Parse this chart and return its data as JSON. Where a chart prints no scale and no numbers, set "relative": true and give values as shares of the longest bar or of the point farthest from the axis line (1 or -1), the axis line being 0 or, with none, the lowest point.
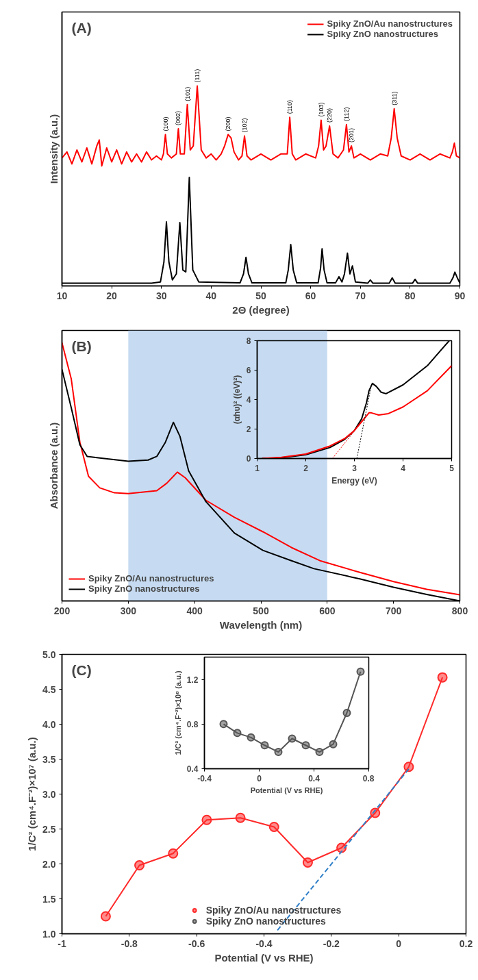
{
  "chart_data": [
    {
      "type": "line",
      "title": "(A)",
      "xlabel": "2Θ (degree)",
      "ylabel": "Intensity (a.u.)",
      "relative": true,
      "xlim": [
        10,
        90
      ],
      "xticks": [
        10,
        20,
        30,
        40,
        50,
        60,
        70,
        80,
        90
      ],
      "tick_labels": "x",
      "legend": "top right",
      "series": [
        {
          "name": "Spiky ZnO/Au nanostructures",
          "color": "#ff0000",
          "x": [
            10,
            11,
            12,
            13,
            14,
            15,
            16,
            17,
            17.5,
            18,
            19,
            20,
            21,
            22,
            23,
            24,
            25,
            26,
            27,
            28,
            29,
            30,
            30.4,
            30.8,
            31.2,
            32,
            33,
            33.4,
            33.8,
            34.6,
            35.2,
            35.8,
            36.4,
            37.2,
            38,
            39,
            40,
            41,
            42,
            42.7,
            43.4,
            44,
            44.6,
            45.5,
            46.2,
            46.7,
            47.2,
            48,
            50,
            52,
            54,
            55.3,
            55.8,
            56.3,
            57,
            59,
            61,
            61.6,
            62.1,
            62.6,
            63.1,
            63.8,
            64.5,
            65.5,
            66.6,
            67.2,
            67.7,
            68.2,
            68.7,
            70,
            72,
            74,
            75.5,
            76.2,
            76.8,
            77.4,
            78.2,
            80,
            82,
            84,
            86,
            88,
            88.5,
            88.9,
            89.3,
            90
          ],
          "values": [
            0.64,
            0.67,
            0.61,
            0.68,
            0.62,
            0.69,
            0.61,
            0.7,
            0.73,
            0.6,
            0.69,
            0.62,
            0.68,
            0.61,
            0.67,
            0.62,
            0.66,
            0.62,
            0.67,
            0.63,
            0.65,
            0.63,
            0.66,
            0.757,
            0.66,
            0.64,
            0.66,
            0.786,
            0.66,
            0.66,
            0.907,
            0.68,
            0.7,
            1.0,
            0.68,
            0.64,
            0.66,
            0.63,
            0.66,
            0.7,
            0.757,
            0.74,
            0.67,
            0.63,
            0.65,
            0.75,
            0.65,
            0.63,
            0.66,
            0.63,
            0.66,
            0.66,
            0.843,
            0.66,
            0.63,
            0.66,
            0.64,
            0.7,
            0.829,
            0.68,
            0.7,
            0.8,
            0.66,
            0.64,
            0.68,
            0.807,
            0.67,
            0.7,
            0.64,
            0.66,
            0.63,
            0.66,
            0.65,
            0.74,
            0.886,
            0.74,
            0.65,
            0.63,
            0.66,
            0.63,
            0.66,
            0.64,
            0.67,
            0.714,
            0.65,
            0.64
          ]
        },
        {
          "name": "Spiky ZnO nanostructures",
          "color": "#000000",
          "x": [
            10,
            28,
            29.8,
            30.5,
            31,
            31.5,
            32.2,
            33,
            33.7,
            34.3,
            34.9,
            35.6,
            36.3,
            37.5,
            45.8,
            46.5,
            47,
            47.5,
            48.2,
            55,
            55.5,
            56,
            56.5,
            57.2,
            61.5,
            62,
            62.3,
            62.7,
            63.3,
            65,
            65.7,
            66.3,
            66.8,
            67.4,
            67.9,
            68.4,
            69,
            71.5,
            72,
            72.5,
            75.8,
            76.4,
            77,
            80.5,
            81,
            81.5,
            88,
            88.6,
            89,
            89.5,
            90
          ],
          "values": [
            0.014,
            0.014,
            0.02,
            0.12,
            0.32,
            0.12,
            0.03,
            0.06,
            0.317,
            0.08,
            0.07,
            0.543,
            0.08,
            0.02,
            0.015,
            0.06,
            0.143,
            0.06,
            0.015,
            0.015,
            0.08,
            0.207,
            0.08,
            0.015,
            0.015,
            0.09,
            0.186,
            0.08,
            0.015,
            0.015,
            0.046,
            0.02,
            0.06,
            0.164,
            0.06,
            0.1,
            0.02,
            0.014,
            0.03,
            0.014,
            0.014,
            0.04,
            0.014,
            0.014,
            0.033,
            0.014,
            0.014,
            0.04,
            0.069,
            0.04,
            0.014
          ]
        }
      ],
      "annotations": [
        {
          "text": "(100)",
          "x": 30.8,
          "y": 0.757
        },
        {
          "text": "(002)",
          "x": 33.4,
          "y": 0.786
        },
        {
          "text": "(101)",
          "x": 35.2,
          "y": 0.907
        },
        {
          "text": "(111)",
          "x": 37.2,
          "y": 1.0
        },
        {
          "text": "(200)",
          "x": 43.4,
          "y": 0.757
        },
        {
          "text": "(102)",
          "x": 46.7,
          "y": 0.75
        },
        {
          "text": "(110)",
          "x": 55.8,
          "y": 0.843
        },
        {
          "text": "(103)",
          "x": 62.1,
          "y": 0.829
        },
        {
          "text": "(220)",
          "x": 63.8,
          "y": 0.8
        },
        {
          "text": "(112)",
          "x": 67.2,
          "y": 0.807
        },
        {
          "text": "(201)",
          "x": 68.2,
          "y": 0.7
        },
        {
          "text": "(311)",
          "x": 76.8,
          "y": 0.886
        }
      ]
    },
    {
      "type": "line",
      "title": "(B)",
      "xlabel": "Wavelength (nm)",
      "ylabel": "Absorbance (a.u.)",
      "relative": true,
      "xlim": [
        200,
        800
      ],
      "xticks": [
        200,
        300,
        400,
        500,
        600,
        700,
        800
      ],
      "tick_labels": "x",
      "legend": "bottom left",
      "bands": [
        {
          "axis": "x",
          "from": 300,
          "to": 600,
          "color": "#bcd5ee"
        }
      ],
      "series": [
        {
          "name": "Spiky ZnO/Au nanostructures",
          "color": "#ff0000",
          "x": [
            200,
            214,
            227,
            240,
            257,
            279,
            300,
            343,
            358,
            374,
            386,
            417,
            460,
            503,
            546,
            589,
            650,
            700,
            750,
            800
          ],
          "values": [
            1.0,
            0.86,
            0.615,
            0.483,
            0.438,
            0.419,
            0.416,
            0.427,
            0.456,
            0.499,
            0.477,
            0.39,
            0.324,
            0.268,
            0.207,
            0.156,
            0.11,
            0.075,
            0.045,
            0.024
          ]
        },
        {
          "name": "Spiky ZnO nanostructures",
          "color": "#000000",
          "x": [
            200,
            214,
            227,
            238,
            257,
            300,
            330,
            343,
            356,
            368,
            378,
            391,
            417,
            460,
            503,
            546,
            580,
            650,
            700,
            750,
            800
          ],
          "values": [
            0.897,
            0.748,
            0.605,
            0.56,
            0.554,
            0.541,
            0.546,
            0.56,
            0.615,
            0.692,
            0.637,
            0.504,
            0.385,
            0.263,
            0.196,
            0.156,
            0.125,
            0.085,
            0.053,
            0.025,
            0.0
          ]
        }
      ]
    },
    {
      "type": "line",
      "xlabel": "Energy (eV)",
      "ylabel": "(αhυ)² ((eV)²)",
      "xlim": [
        1,
        5
      ],
      "xticks": [
        1,
        2,
        3,
        4,
        5
      ],
      "ylim": [
        0,
        8
      ],
      "yticks": [
        0,
        2,
        4,
        6,
        8
      ],
      "series": [
        {
          "color": "#000000",
          "x": [
            1.1,
            1.5,
            2.0,
            2.5,
            2.8,
            3.0,
            3.15,
            3.25,
            3.3,
            3.37,
            3.45,
            3.55,
            3.65,
            4.0,
            4.5,
            4.95
          ],
          "values": [
            0,
            0.05,
            0.25,
            0.75,
            1.3,
            1.9,
            2.7,
            3.8,
            4.6,
            5.1,
            4.9,
            4.5,
            4.4,
            5.0,
            6.3,
            8.0
          ]
        },
        {
          "color": "#ff0000",
          "x": [
            1.1,
            1.5,
            2.0,
            2.5,
            2.8,
            3.0,
            3.15,
            3.3,
            3.35,
            3.5,
            3.7,
            4.0,
            4.5,
            5.0
          ],
          "values": [
            0,
            0.08,
            0.3,
            0.85,
            1.35,
            1.9,
            2.5,
            3.1,
            3.1,
            2.95,
            3.05,
            3.5,
            4.6,
            6.3
          ]
        },
        {
          "color": "#ff0000",
          "line_style": "dotted",
          "x": [
            2.55,
            3.2
          ],
          "values": [
            0,
            2.7
          ]
        },
        {
          "color": "#000000",
          "line_style": "dotted",
          "x": [
            3.05,
            3.35
          ],
          "values": [
            0,
            5.0
          ]
        }
      ]
    },
    {
      "type": "line",
      "title": "(C)",
      "xlabel": "Potential (V vs RHE)",
      "ylabel": "1/C² (cm⁴.F⁻²)×10⁷ (a.u.)",
      "xlim": [
        -1,
        0.2
      ],
      "xticks": [
        -1,
        -0.8,
        -0.6,
        -0.4,
        -0.2,
        0,
        0.2
      ],
      "ylim": [
        1,
        5
      ],
      "yticks": [
        {
          "value": 1,
          "label": "1.0"
        },
        1.5,
        {
          "value": 2,
          "label": "2.0"
        },
        2.5,
        {
          "value": 3,
          "label": "3.0"
        },
        3.5,
        {
          "value": 4,
          "label": "4.0"
        },
        4.5,
        {
          "value": 5,
          "label": "5.0"
        }
      ],
      "marker": "circle",
      "legend": "bottom",
      "series": [
        {
          "name": "Spiky ZnO/Au nanostructures",
          "color": "#ff2a2a",
          "x": [
            -0.87,
            -0.77,
            -0.67,
            -0.57,
            -0.47,
            -0.37,
            -0.27,
            -0.17,
            -0.07,
            0.03,
            0.13
          ],
          "values": [
            1.25,
            1.98,
            2.15,
            2.63,
            2.66,
            2.53,
            2.02,
            2.23,
            2.73,
            3.39,
            4.67
          ]
        },
        {
          "name": "Spiky ZnO nanostructures",
          "color": "#555555"
        },
        {
          "color": "#2f7fc8",
          "line_style": "dashed",
          "marker": "none",
          "x": [
            -0.36,
            0.03
          ],
          "values": [
            1.05,
            3.36
          ]
        }
      ]
    },
    {
      "type": "line",
      "xlabel": "Potential (V vs RHE)",
      "ylabel": "1/C² (cm⁴.F⁻²)×10⁸ (a.u.)",
      "xlim": [
        -0.4,
        0.8
      ],
      "xticks": [
        -0.4,
        0,
        0.4,
        0.8
      ],
      "ylim": [
        0.4,
        1.4
      ],
      "yticks": [
        0.4,
        0.8,
        1.2
      ],
      "marker": "circle",
      "series": [
        {
          "color": "#555555",
          "x": [
            -0.26,
            -0.16,
            -0.06,
            0.04,
            0.14,
            0.24,
            0.34,
            0.44,
            0.54,
            0.64,
            0.74
          ],
          "values": [
            0.8,
            0.72,
            0.68,
            0.61,
            0.55,
            0.67,
            0.61,
            0.55,
            0.62,
            0.9,
            1.27
          ]
        }
      ]
    }
  ]
}
